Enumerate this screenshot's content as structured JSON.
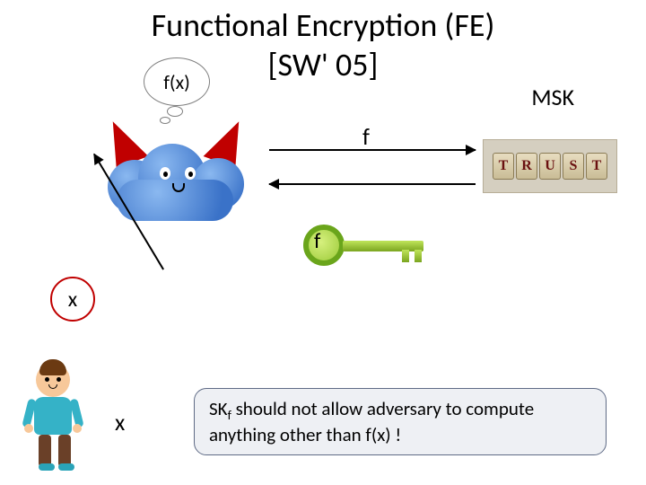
{
  "title": "Functional Encryption (FE)",
  "subtitle": "[SW' 05]",
  "msk_label": "MSK",
  "bubble_label": "f(x)",
  "arrow_top_label": "f",
  "key_label": "f",
  "x_circle_label": "x",
  "x_small_label": "x",
  "trust_letters": [
    "T",
    "R",
    "U",
    "S",
    "T"
  ],
  "note_html": "SK<sub>f</sub> should not allow adversary to compute anything other than f(x) !",
  "colors": {
    "horn": "#c00000",
    "cloud_light": "#8ab8f0",
    "cloud_dark": "#3a72c8",
    "key_green_dark": "#6aa51b",
    "key_green_light": "#d6f07e",
    "note_bg": "#eef0f4",
    "note_border": "#5f6b86",
    "x_border": "#c00000",
    "trust_block_text": "#6a1010",
    "skin": "#f7c89a",
    "shirt": "#35b2c7",
    "hair": "#6b3a12",
    "pants": "#6a4028"
  },
  "fontsizes": {
    "title": 36,
    "labels": 26,
    "note": 21
  }
}
